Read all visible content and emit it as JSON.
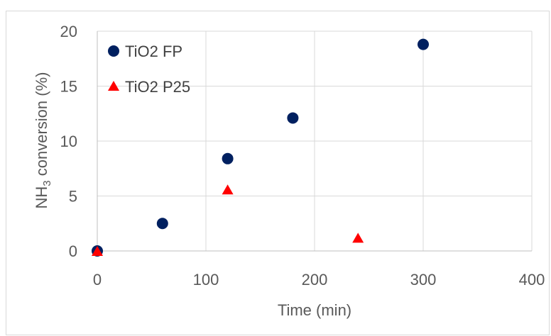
{
  "chart_data": {
    "type": "scatter",
    "xlabel": "Time (min)",
    "ylabel_main": "NH",
    "ylabel_sub": "3",
    "ylabel_rest": " conversion (%)",
    "xlim": [
      0,
      400
    ],
    "ylim": [
      0,
      20
    ],
    "xticks": [
      "0",
      "100",
      "200",
      "300",
      "400"
    ],
    "yticks": [
      "0",
      "5",
      "10",
      "15",
      "20"
    ],
    "grid": true,
    "legend_position": "top-left",
    "series": [
      {
        "name": "TiO2 FP",
        "marker": "circle",
        "color": "#002060",
        "x": [
          0,
          60,
          120,
          180,
          300
        ],
        "y": [
          0,
          2.5,
          8.4,
          12.1,
          18.8
        ]
      },
      {
        "name": "TiO2 P25",
        "marker": "triangle",
        "color": "#ff0000",
        "x": [
          0,
          120,
          240
        ],
        "y": [
          0,
          5.6,
          1.2
        ]
      }
    ]
  }
}
